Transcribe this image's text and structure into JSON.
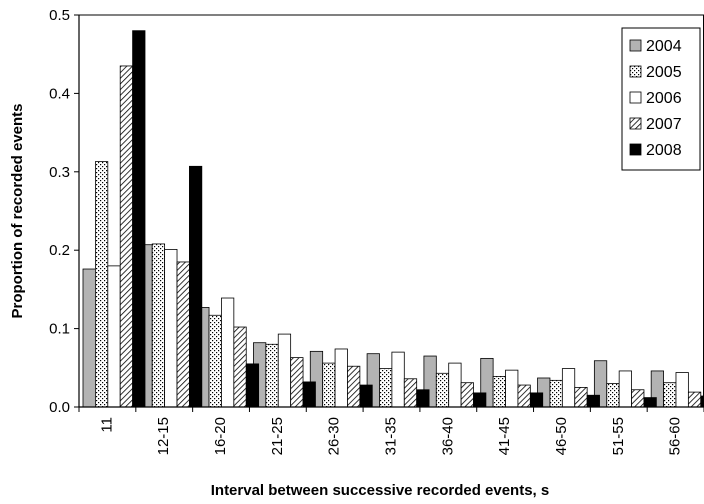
{
  "chart_data": {
    "type": "bar",
    "title": "",
    "xlabel": "Interval between successive recorded events, s",
    "ylabel": "Proportion of recorded events",
    "ylim": [
      0,
      0.5
    ],
    "yticks": [
      "0.0",
      "0.1",
      "0.2",
      "0.3",
      "0.4",
      "0.5"
    ],
    "grid": false,
    "legend_position": "top-right",
    "categories": [
      "11",
      "12-15",
      "16-20",
      "21-25",
      "26-30",
      "31-35",
      "36-40",
      "41-45",
      "46-50",
      "51-55",
      "56-60"
    ],
    "series": [
      {
        "name": "2004",
        "pattern": "gray",
        "values": [
          0.176,
          0.207,
          0.127,
          0.082,
          0.071,
          0.068,
          0.065,
          0.062,
          0.037,
          0.059,
          0.046
        ]
      },
      {
        "name": "2005",
        "pattern": "dotted",
        "values": [
          0.313,
          0.208,
          0.117,
          0.08,
          0.056,
          0.049,
          0.043,
          0.039,
          0.034,
          0.03,
          0.031
        ]
      },
      {
        "name": "2006",
        "pattern": "white",
        "values": [
          0.18,
          0.201,
          0.139,
          0.093,
          0.074,
          0.07,
          0.056,
          0.047,
          0.049,
          0.046,
          0.044
        ]
      },
      {
        "name": "2007",
        "pattern": "hatch",
        "values": [
          0.435,
          0.185,
          0.102,
          0.063,
          0.052,
          0.036,
          0.031,
          0.028,
          0.025,
          0.022,
          0.019
        ]
      },
      {
        "name": "2008",
        "pattern": "black",
        "values": [
          0.48,
          0.307,
          0.055,
          0.032,
          0.028,
          0.022,
          0.018,
          0.018,
          0.015,
          0.012,
          0.014
        ]
      }
    ]
  }
}
